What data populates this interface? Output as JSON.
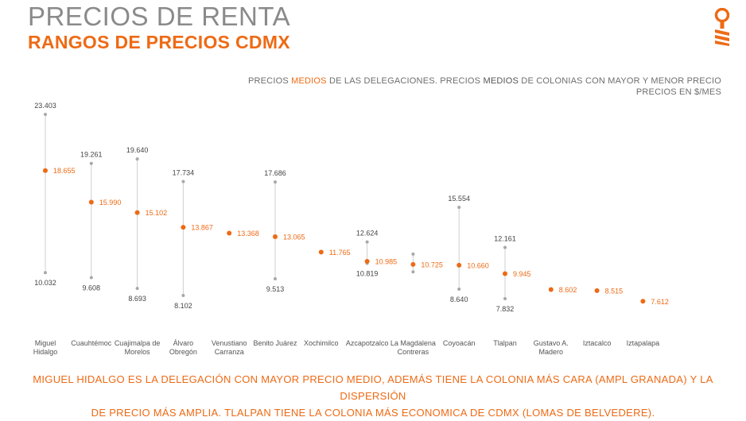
{
  "header": {
    "title": "PRECIOS DE RENTA",
    "subtitle": "RANGOS DE PRECIOS CDMX"
  },
  "note": {
    "line1_a": "PRECIOS ",
    "line1_b": "MEDIOS",
    "line1_c": " DE LAS DELEGACIONES. PRECIOS ",
    "line1_d": "MEDIOS",
    "line1_e": " DE COLONIAS CON MAYOR Y MENOR PRECIO",
    "line2": "PRECIOS EN $/MES"
  },
  "footer": {
    "line1": "MIGUEL HIDALGO ES LA DELEGACIÓN CON MAYOR PRECIO MEDIO, ADEMÁS TIENE LA COLONIA MÁS CARA (AMPL GRANADA) Y LA DISPERSIÓN",
    "line2": "DE PRECIO MÁS AMPLIA. TLALPAN TIENE LA COLONIA MÁS ECONOMICA DE CDMX (LOMAS DE BELVEDERE)."
  },
  "colors": {
    "accent": "#ee6a15",
    "range_line": "#d0d0d0",
    "range_dot": "#a8a8a8",
    "text": "#444444"
  },
  "logo_icon": "key-pin-icon",
  "chart_data": {
    "type": "range-dot",
    "categories": [
      [
        "Miguel",
        "Hidalgo"
      ],
      [
        "Cuauhtémoc"
      ],
      [
        "Cuajimalpa de",
        "Morelos"
      ],
      [
        "Álvaro",
        "Obregón"
      ],
      [
        "Venustiano",
        "Carranza"
      ],
      [
        "Benito Juárez"
      ],
      [
        "Xochimilco"
      ],
      [
        "Azcapotzalco"
      ],
      [
        "La Magdalena",
        "Contreras"
      ],
      [
        "Coyoacán"
      ],
      [
        "Tlalpan"
      ],
      [
        "Gustavo A.",
        "Madero"
      ],
      [
        "Iztacalco"
      ],
      [
        "Iztapalapa"
      ]
    ],
    "median": [
      18655,
      15990,
      15102,
      13867,
      13368,
      13065,
      11765,
      10985,
      10725,
      10660,
      9945,
      8602,
      8515,
      7612
    ],
    "median_labels": [
      "18.655",
      "15.990",
      "15.102",
      "13.867",
      "13.368",
      "13.065",
      "11.765",
      "10.985",
      "10.725",
      "10.660",
      "9.945",
      "8.602",
      "8.515",
      "7.612"
    ],
    "max": [
      23403,
      19261,
      19640,
      17734,
      null,
      17686,
      null,
      12624,
      11600,
      15554,
      12161,
      null,
      null,
      null
    ],
    "max_labels": [
      "23.403",
      "19.261",
      "19.640",
      "17.734",
      "",
      "17.686",
      "",
      "12.624",
      "",
      "15.554",
      "12.161",
      "",
      "",
      ""
    ],
    "min": [
      10032,
      9608,
      8693,
      8102,
      null,
      9513,
      null,
      10819,
      10100,
      8640,
      7832,
      null,
      null,
      null
    ],
    "min_labels": [
      "10.032",
      "9.608",
      "8.693",
      "8.102",
      "",
      "9.513",
      "",
      "10.819",
      "",
      "8.640",
      "7.832",
      "",
      "",
      ""
    ],
    "unit": "$/MES"
  }
}
